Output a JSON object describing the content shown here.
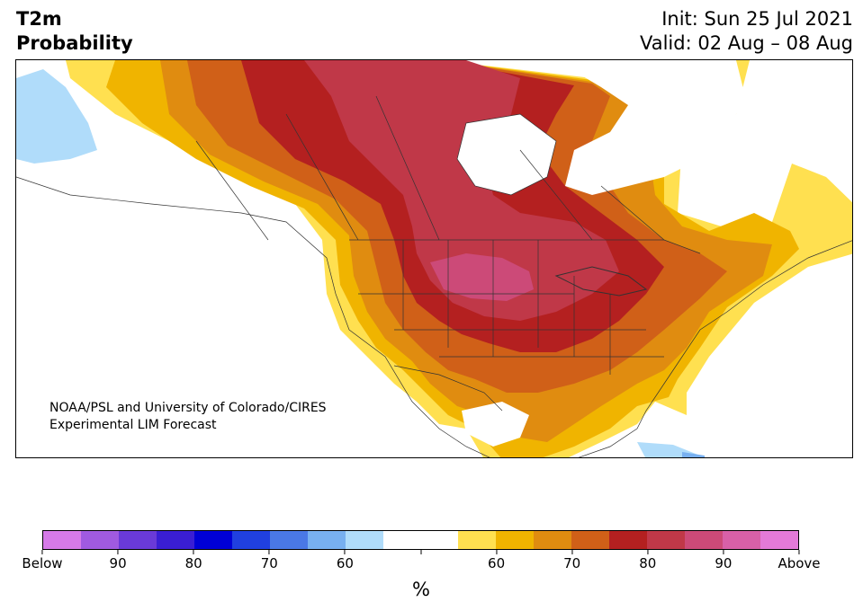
{
  "header": {
    "title_line1": "T2m",
    "title_line2": "Probability",
    "init": "Init: Sun 25 Jul 2021",
    "valid": "Valid: 02 Aug – 08 Aug"
  },
  "credit": {
    "line1": "NOAA/PSL and University of Colorado/CIRES",
    "line2": "Experimental LIM Forecast"
  },
  "colorbar": {
    "unit": "%",
    "colors": [
      "#d67ae8",
      "#a05ae0",
      "#6a3ad8",
      "#3a1ed4",
      "#0000d6",
      "#2040e0",
      "#4a78e6",
      "#78b0f0",
      "#b0dcfa",
      "#ffffff",
      "#ffffff",
      "#ffe050",
      "#f0b400",
      "#e08c10",
      "#d06018",
      "#b42020",
      "#c03848",
      "#cc4a78",
      "#d860a8",
      "#e47ad8"
    ],
    "tick_labels": [
      "Below",
      "90",
      "80",
      "70",
      "60",
      "",
      "60",
      "70",
      "80",
      "90",
      "Above"
    ]
  },
  "map": {
    "region": "North America",
    "colors": {
      "ocean": "#ffffff",
      "land_neutral": "#ffffff",
      "above_55": "#ffe050",
      "above_60": "#f0b400",
      "above_65": "#e08c10",
      "above_70": "#d06018",
      "above_75": "#b42020",
      "above_80": "#c03848",
      "above_85": "#cc4a78",
      "below_60": "#b0dcfa",
      "below_65": "#78b0f0"
    }
  }
}
